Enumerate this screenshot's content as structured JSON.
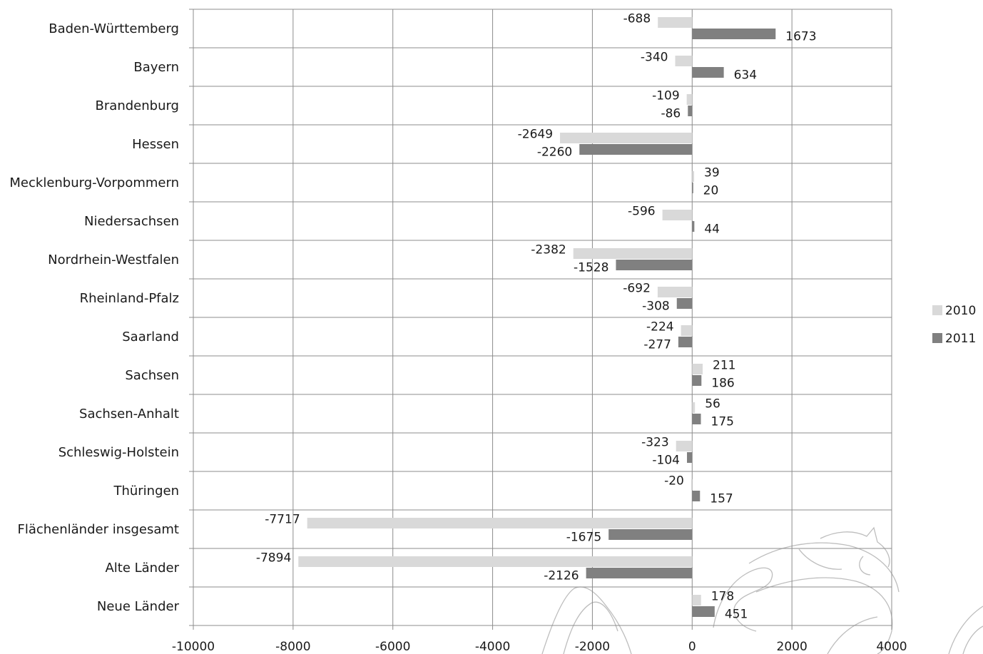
{
  "chart_data": {
    "type": "bar",
    "orientation": "horizontal",
    "categories": [
      "Baden-Württemberg",
      "Bayern",
      "Brandenburg",
      "Hessen",
      "Mecklenburg-Vorpommern",
      "Niedersachsen",
      "Nordrhein-Westfalen",
      "Rheinland-Pfalz",
      "Saarland",
      "Sachsen",
      "Sachsen-Anhalt",
      "Schleswig-Holstein",
      "Thüringen",
      "Flächenländer insgesamt",
      "Alte Länder",
      "Neue Länder"
    ],
    "series": [
      {
        "name": "2010",
        "color": "#d9d9d9",
        "values": [
          -688,
          -340,
          -109,
          -2649,
          39,
          -596,
          -2382,
          -692,
          -224,
          211,
          56,
          -323,
          -20,
          -7717,
          -7894,
          178
        ]
      },
      {
        "name": "2011",
        "color": "#808080",
        "values": [
          1673,
          634,
          -86,
          -2260,
          20,
          44,
          -1528,
          -308,
          -277,
          186,
          175,
          -104,
          157,
          -1675,
          -2126,
          451
        ]
      }
    ],
    "xlim": [
      -10000,
      4000
    ],
    "x_ticks": [
      -10000,
      -8000,
      -6000,
      -4000,
      -2000,
      0,
      2000,
      4000
    ],
    "grid": true,
    "legend_position": "right",
    "title": "",
    "xlabel": "",
    "ylabel": ""
  }
}
